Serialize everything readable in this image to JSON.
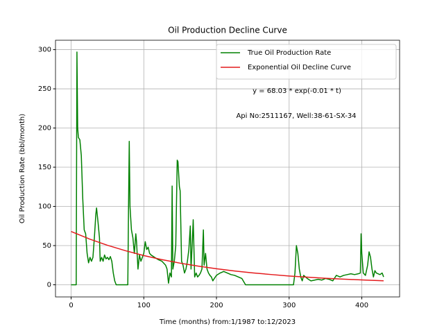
{
  "chart_data": {
    "type": "line",
    "title": "Oil Production Decline Curve",
    "xlabel": "Time (months) from:1/1987 to:12/2023",
    "ylabel": "Oil Production Rate (bbl/month)",
    "annotations": [
      "y = 68.03 * exp(-0.01 * t)",
      "Api No:2511167, Well:38-61-SX-34"
    ],
    "xlim": [
      -21.5,
      452
    ],
    "ylim": [
      -15.5,
      312
    ],
    "xticks": [
      0,
      100,
      200,
      300,
      400
    ],
    "yticks": [
      0,
      50,
      100,
      150,
      200,
      250,
      300
    ],
    "grid": true,
    "legend": "upper right",
    "series": [
      {
        "name": "True Oil Production Rate",
        "color": "#008000",
        "x": [
          0,
          6,
          7,
          8,
          9,
          10,
          12,
          14,
          16,
          18,
          20,
          22,
          24,
          26,
          28,
          30,
          32,
          34,
          35,
          37,
          39,
          40,
          42,
          44,
          46,
          48,
          50,
          52,
          54,
          56,
          58,
          60,
          62,
          70,
          78,
          79,
          80,
          81,
          83,
          85,
          87,
          89,
          90,
          92,
          94,
          96,
          98,
          100,
          102,
          104,
          106,
          108,
          110,
          115,
          120,
          125,
          130,
          132,
          134,
          136,
          138,
          139,
          140,
          142,
          144,
          146,
          147,
          149,
          150,
          152,
          154,
          156,
          158,
          160,
          162,
          164,
          165,
          167,
          168,
          170,
          172,
          174,
          176,
          178,
          180,
          182,
          183,
          185,
          187,
          189,
          191,
          193,
          195,
          197,
          200,
          205,
          210,
          215,
          220,
          225,
          230,
          235,
          240,
          250,
          280,
          300,
          306,
          308,
          310,
          312,
          314,
          316,
          318,
          320,
          325,
          330,
          335,
          340,
          345,
          350,
          355,
          360,
          365,
          370,
          375,
          380,
          385,
          390,
          395,
          398,
          399,
          400,
          402,
          405,
          408,
          410,
          412,
          414,
          416,
          418,
          420,
          425,
          428,
          430
        ],
        "values": [
          0,
          0,
          0,
          297,
          200,
          188,
          185,
          165,
          110,
          70,
          65,
          40,
          28,
          35,
          30,
          35,
          60,
          90,
          98,
          80,
          60,
          30,
          35,
          30,
          38,
          33,
          35,
          32,
          36,
          30,
          15,
          5,
          0,
          0,
          0,
          100,
          183,
          100,
          70,
          60,
          40,
          65,
          55,
          20,
          38,
          30,
          35,
          40,
          55,
          45,
          48,
          40,
          38,
          35,
          32,
          30,
          25,
          20,
          2,
          15,
          10,
          126,
          20,
          30,
          50,
          159,
          157,
          125,
          120,
          30,
          25,
          15,
          20,
          30,
          45,
          75,
          20,
          60,
          83,
          10,
          15,
          10,
          12,
          15,
          20,
          70,
          25,
          40,
          20,
          15,
          12,
          10,
          5,
          8,
          12,
          15,
          17,
          15,
          13,
          12,
          10,
          8,
          0,
          0,
          0,
          0,
          0,
          15,
          50,
          40,
          20,
          10,
          5,
          12,
          8,
          5,
          6,
          7,
          6,
          8,
          7,
          5,
          12,
          10,
          12,
          13,
          14,
          13,
          14,
          15,
          65,
          40,
          15,
          12,
          25,
          42,
          35,
          20,
          10,
          18,
          15,
          13,
          15,
          10
        ]
      },
      {
        "name": "Exponential Oil Decline Curve",
        "color": "#e41a1c",
        "x": [
          0,
          25,
          50,
          75,
          100,
          125,
          150,
          175,
          200,
          225,
          250,
          275,
          300,
          325,
          350,
          375,
          400,
          430
        ],
        "values": [
          68,
          58.5,
          50.4,
          43.4,
          37.3,
          32.1,
          27.6,
          23.8,
          20.5,
          17.6,
          15.2,
          13.1,
          11.2,
          9.7,
          8.3,
          7.2,
          6.2,
          5.1
        ]
      }
    ]
  }
}
